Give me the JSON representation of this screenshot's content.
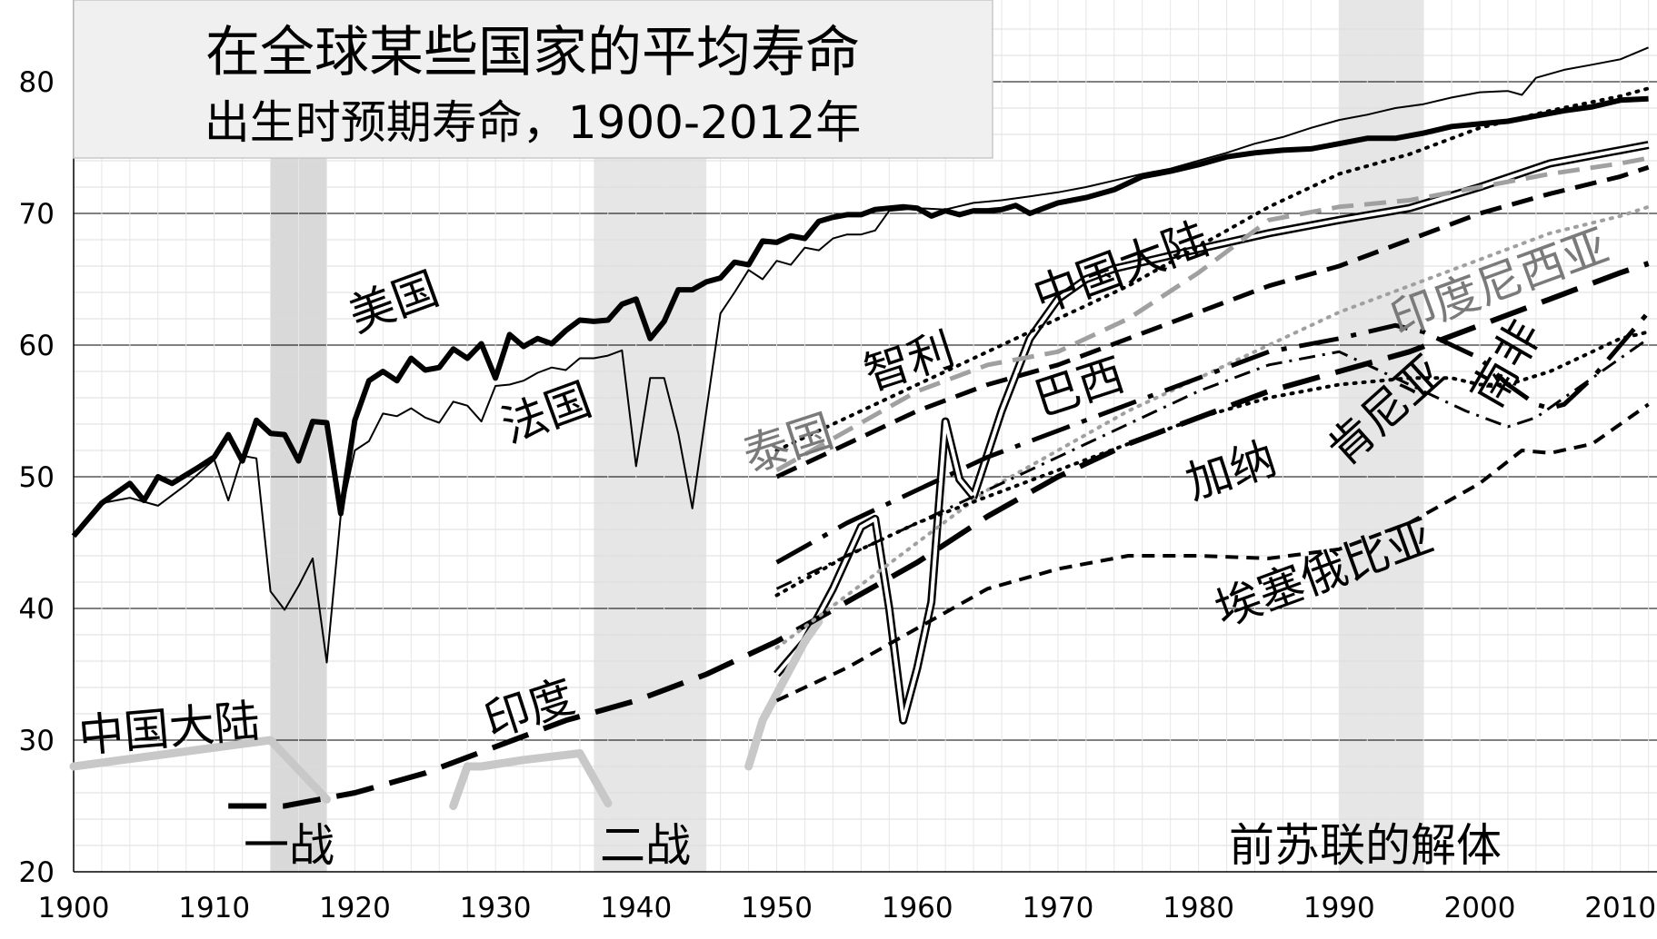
{
  "chart_data": {
    "type": "line",
    "title": "在全球某些国家的平均寿命",
    "subtitle": "出生时预期寿命，1900-2012年",
    "xlabel": "",
    "ylabel": "",
    "xlim": [
      1900,
      2012
    ],
    "ylim": [
      20,
      85
    ],
    "x_ticks": [
      1900,
      1910,
      1920,
      1930,
      1940,
      1950,
      1960,
      1970,
      1980,
      1990,
      2000,
      2010
    ],
    "x_tick_labels": [
      "1900",
      "1910",
      "1920",
      "1930",
      "1940",
      "1950",
      "1960",
      "1970",
      "1980",
      "1990",
      "2000",
      "2010"
    ],
    "y_ticks": [
      20,
      30,
      40,
      50,
      60,
      70,
      80
    ],
    "y_tick_labels": [
      "20",
      "30",
      "40",
      "50",
      "60",
      "70",
      "80"
    ],
    "grid": true,
    "legend": "none",
    "shaded_periods": [
      {
        "label": "一战",
        "start": 1914,
        "end": 1918
      },
      {
        "label": "二战",
        "start": 1937,
        "end": 1945
      },
      {
        "label": "前苏联的解体",
        "start": 1990,
        "end": 1996
      }
    ],
    "series": [
      {
        "name": "美国",
        "style": "thick-solid",
        "color": "#000000",
        "x": [
          1900,
          1902,
          1904,
          1905,
          1906,
          1907,
          1909,
          1910,
          1911,
          1912,
          1913,
          1914,
          1915,
          1916,
          1917,
          1918,
          1919,
          1920,
          1921,
          1922,
          1923,
          1924,
          1925,
          1926,
          1927,
          1928,
          1929,
          1930,
          1931,
          1932,
          1933,
          1934,
          1935,
          1936,
          1937,
          1938,
          1939,
          1940,
          1941,
          1942,
          1943,
          1944,
          1945,
          1946,
          1947,
          1948,
          1949,
          1950,
          1951,
          1952,
          1953,
          1954,
          1955,
          1956,
          1957,
          1958,
          1959,
          1960,
          1961,
          1962,
          1963,
          1964,
          1965,
          1966,
          1967,
          1968,
          1970,
          1972,
          1974,
          1976,
          1978,
          1980,
          1982,
          1984,
          1986,
          1988,
          1990,
          1992,
          1994,
          1996,
          1998,
          2000,
          2002,
          2004,
          2006,
          2008,
          2010,
          2012
        ],
        "y": [
          45.5,
          48.0,
          49.5,
          48.2,
          50.0,
          49.5,
          50.8,
          51.5,
          53.2,
          51.2,
          54.3,
          53.3,
          53.2,
          51.2,
          54.2,
          54.1,
          47.2,
          54.3,
          57.3,
          58.0,
          57.3,
          59.0,
          58.1,
          58.3,
          59.7,
          59.0,
          60.1,
          57.5,
          60.8,
          59.9,
          60.5,
          60.1,
          61.1,
          61.9,
          61.8,
          61.9,
          63.1,
          63.5,
          60.5,
          61.8,
          64.2,
          64.2,
          64.8,
          65.1,
          66.3,
          66.1,
          67.9,
          67.8,
          68.3,
          68.1,
          69.4,
          69.7,
          69.9,
          69.9,
          70.3,
          70.4,
          70.5,
          70.4,
          69.8,
          70.2,
          69.9,
          70.2,
          70.2,
          70.3,
          70.6,
          70.0,
          70.8,
          71.2,
          71.8,
          72.8,
          73.2,
          73.7,
          74.3,
          74.6,
          74.8,
          74.9,
          75.3,
          75.7,
          75.7,
          76.1,
          76.6,
          76.8,
          77.0,
          77.4,
          77.8,
          78.1,
          78.6,
          78.7
        ]
      },
      {
        "name": "法国",
        "style": "thin-solid",
        "color": "#000000",
        "x": [
          1900,
          1902,
          1904,
          1906,
          1908,
          1910,
          1911,
          1912,
          1913,
          1914,
          1915,
          1916,
          1917,
          1918,
          1919,
          1920,
          1921,
          1922,
          1923,
          1924,
          1925,
          1926,
          1927,
          1928,
          1929,
          1930,
          1931,
          1932,
          1933,
          1934,
          1935,
          1936,
          1937,
          1938,
          1939,
          1940,
          1941,
          1942,
          1943,
          1944,
          1945,
          1946,
          1947,
          1948,
          1949,
          1950,
          1951,
          1952,
          1953,
          1954,
          1955,
          1956,
          1957,
          1958,
          1959,
          1960,
          1962,
          1964,
          1966,
          1968,
          1970,
          1972,
          1974,
          1976,
          1978,
          1980,
          1982,
          1984,
          1986,
          1988,
          1990,
          1992,
          1994,
          1996,
          1998,
          2000,
          2002,
          2003,
          2004,
          2006,
          2008,
          2010,
          2012
        ],
        "y": [
          45.5,
          48.0,
          48.4,
          47.8,
          49.4,
          51.3,
          48.2,
          51.6,
          51.4,
          41.3,
          39.9,
          41.7,
          43.8,
          35.9,
          47.1,
          52.0,
          52.7,
          54.8,
          54.6,
          55.2,
          54.5,
          54.1,
          55.7,
          55.4,
          54.2,
          56.9,
          57.0,
          57.3,
          57.9,
          58.3,
          58.1,
          59.0,
          59.0,
          59.2,
          59.6,
          50.8,
          57.5,
          57.5,
          53.3,
          47.6,
          55.0,
          62.4,
          64.0,
          65.7,
          65.0,
          66.4,
          66.1,
          67.4,
          67.2,
          68.1,
          68.4,
          68.4,
          68.7,
          70.2,
          70.3,
          70.4,
          70.3,
          70.8,
          71.0,
          71.3,
          71.6,
          72.0,
          72.5,
          73.0,
          73.4,
          74.0,
          74.6,
          75.3,
          75.8,
          76.5,
          77.1,
          77.5,
          78.0,
          78.3,
          78.8,
          79.2,
          79.3,
          79.0,
          80.3,
          80.9,
          81.3,
          81.7,
          82.6
        ]
      },
      {
        "name": "中国大陆",
        "style": "double-line",
        "color": "#000000",
        "x": [
          1950,
          1952,
          1954,
          1956,
          1957,
          1958,
          1959,
          1960,
          1961,
          1962,
          1963,
          1964,
          1966,
          1968,
          1970,
          1972,
          1974,
          1976,
          1978,
          1980,
          1985,
          1990,
          1995,
          2000,
          2005,
          2010,
          2012
        ],
        "y": [
          35.0,
          37.5,
          41.5,
          46.2,
          46.8,
          40.0,
          31.5,
          35.5,
          40.5,
          54.2,
          49.8,
          48.5,
          55.0,
          60.5,
          63.5,
          65.0,
          65.8,
          66.3,
          66.8,
          67.3,
          68.5,
          69.5,
          70.4,
          72.0,
          73.8,
          74.8,
          75.2
        ]
      },
      {
        "name": "中国大陆",
        "style": "thick-gray",
        "color": "#c8c8c8",
        "x": [
          1900,
          1914,
          1918
        ],
        "y": [
          28.0,
          30.0,
          25.5
        ]
      },
      {
        "name": "中国大陆",
        "style": "thick-gray",
        "color": "#c8c8c8",
        "x": [
          1927,
          1928,
          1929,
          1932,
          1936,
          1938
        ],
        "y": [
          25.0,
          28.0,
          28.0,
          28.5,
          29.0,
          25.2
        ]
      },
      {
        "name": "中国大陆",
        "style": "thick-gray",
        "color": "#c8c8c8",
        "x": [
          1948,
          1949,
          1950,
          1951,
          1952,
          1953
        ],
        "y": [
          28.0,
          31.5,
          33.5,
          35.5,
          37.5,
          39.0
        ]
      },
      {
        "name": "印度",
        "style": "long-dash",
        "color": "#000000",
        "x": [
          1911,
          1915,
          1920,
          1925,
          1930,
          1935,
          1940,
          1945,
          1950,
          1955,
          1960,
          1965,
          1970,
          1975,
          1980,
          1985,
          1990,
          1995,
          2000,
          2005,
          2010,
          2012
        ],
        "y": [
          25.0,
          25.0,
          26.0,
          27.5,
          29.5,
          31.5,
          33.0,
          35.0,
          37.5,
          40.5,
          43.5,
          47.0,
          50.0,
          52.5,
          54.5,
          56.5,
          58.0,
          59.5,
          61.5,
          63.5,
          65.5,
          66.2
        ]
      },
      {
        "name": "智利",
        "style": "dotted",
        "color": "#000000",
        "x": [
          1950,
          1955,
          1960,
          1965,
          1970,
          1975,
          1980,
          1985,
          1990,
          1995,
          2000,
          2005,
          2010,
          2012
        ],
        "y": [
          52.0,
          54.5,
          57.0,
          59.5,
          62.0,
          64.5,
          67.5,
          70.5,
          73.0,
          74.5,
          76.5,
          77.8,
          78.9,
          79.5
        ]
      },
      {
        "name": "泰国",
        "style": "gray-dash",
        "color": "#a0a0a0",
        "x": [
          1950,
          1955,
          1960,
          1965,
          1970,
          1975,
          1980,
          1985,
          1990,
          1995,
          2000,
          2005,
          2010,
          2012
        ],
        "y": [
          50.5,
          53.5,
          56.5,
          58.5,
          59.5,
          62.0,
          65.5,
          69.5,
          70.5,
          71.0,
          72.0,
          73.0,
          73.8,
          74.2
        ]
      },
      {
        "name": "巴西",
        "style": "dash",
        "color": "#000000",
        "x": [
          1950,
          1955,
          1960,
          1965,
          1970,
          1975,
          1980,
          1985,
          1990,
          1995,
          2000,
          2005,
          2010,
          2012
        ],
        "y": [
          50.0,
          52.5,
          55.0,
          57.0,
          58.5,
          60.5,
          62.5,
          64.5,
          66.0,
          68.0,
          70.0,
          71.5,
          72.8,
          73.5
        ]
      },
      {
        "name": "印度尼西亚",
        "style": "gray-dotted",
        "color": "#a0a0a0",
        "x": [
          1950,
          1955,
          1960,
          1965,
          1970,
          1975,
          1980,
          1985,
          1990,
          1995,
          2000,
          2005,
          2010,
          2012
        ],
        "y": [
          37.0,
          41.0,
          45.0,
          49.0,
          52.0,
          55.0,
          57.5,
          60.0,
          62.5,
          64.5,
          66.5,
          68.5,
          69.8,
          70.5
        ]
      },
      {
        "name": "加纳",
        "style": "dotted",
        "color": "#000000",
        "x": [
          1950,
          1955,
          1960,
          1965,
          1970,
          1975,
          1980,
          1985,
          1990,
          1995,
          1998,
          2000,
          2002,
          2005,
          2008,
          2010,
          2012
        ],
        "y": [
          41.0,
          44.0,
          46.5,
          48.5,
          50.5,
          52.5,
          54.5,
          56.0,
          57.0,
          57.5,
          57.5,
          57.0,
          57.0,
          58.0,
          59.5,
          60.5,
          61.0
        ]
      },
      {
        "name": "肯尼亚",
        "style": "dash-dot",
        "color": "#000000",
        "x": [
          1950,
          1955,
          1960,
          1965,
          1970,
          1975,
          1980,
          1985,
          1990,
          1993,
          1996,
          1999,
          2002,
          2004,
          2006,
          2008,
          2010,
          2012
        ],
        "y": [
          41.5,
          44.0,
          46.5,
          49.0,
          51.5,
          54.0,
          56.5,
          58.5,
          59.5,
          58.0,
          56.5,
          55.0,
          53.8,
          54.5,
          56.0,
          57.5,
          59.0,
          60.5
        ]
      },
      {
        "name": "南非",
        "style": "long-dash-dot",
        "color": "#000000",
        "x": [
          1950,
          1955,
          1960,
          1965,
          1970,
          1975,
          1980,
          1985,
          1990,
          1992,
          1994,
          1996,
          1998,
          2000,
          2002,
          2004,
          2005,
          2006,
          2008,
          2010,
          2012
        ],
        "y": [
          43.5,
          46.5,
          49.0,
          51.5,
          53.5,
          55.5,
          57.5,
          59.5,
          60.5,
          61.0,
          61.5,
          61.0,
          60.0,
          59.0,
          57.0,
          55.5,
          55.2,
          55.5,
          57.5,
          60.0,
          62.5
        ]
      },
      {
        "name": "埃塞俄比亚",
        "style": "short-dash",
        "color": "#000000",
        "x": [
          1950,
          1955,
          1960,
          1965,
          1970,
          1975,
          1980,
          1985,
          1990,
          1995,
          2000,
          2003,
          2005,
          2008,
          2010,
          2012
        ],
        "y": [
          33.0,
          35.5,
          38.5,
          41.5,
          43.0,
          44.0,
          44.0,
          43.8,
          44.5,
          46.5,
          49.5,
          52.0,
          51.8,
          52.5,
          54.0,
          55.5
        ]
      }
    ],
    "annotations": [
      {
        "text": "美国",
        "color": "#000000"
      },
      {
        "text": "法国",
        "color": "#000000"
      },
      {
        "text": "中国大陆",
        "color": "#000000"
      },
      {
        "text": "中国大陆",
        "color": "#000000"
      },
      {
        "text": "印度",
        "color": "#000000"
      },
      {
        "text": "智利",
        "color": "#000000"
      },
      {
        "text": "泰国",
        "color": "#7a7a7a"
      },
      {
        "text": "巴西",
        "color": "#000000"
      },
      {
        "text": "印度尼西亚",
        "color": "#7a7a7a"
      },
      {
        "text": "加纳",
        "color": "#000000"
      },
      {
        "text": "肯尼亚",
        "color": "#000000"
      },
      {
        "text": "南非",
        "color": "#000000"
      },
      {
        "text": "埃塞俄比亚",
        "color": "#000000"
      },
      {
        "text": "一战",
        "color": "#000000"
      },
      {
        "text": "二战",
        "color": "#000000"
      },
      {
        "text": "前苏联的解体",
        "color": "#000000"
      }
    ]
  }
}
